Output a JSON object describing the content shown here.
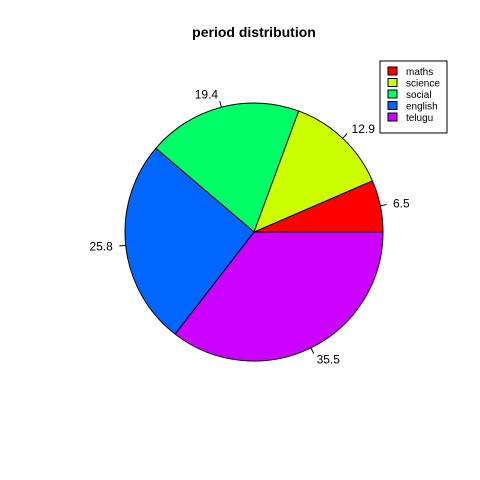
{
  "chart_data": {
    "type": "pie",
    "title": "period distribution",
    "categories": [
      "maths",
      "science",
      "social",
      "english",
      "telugu"
    ],
    "values": [
      6.5,
      12.9,
      19.4,
      25.8,
      35.5
    ],
    "labels": [
      "6.5",
      "12.9",
      "19.4",
      "25.8",
      "35.5"
    ],
    "colors": [
      "#FF0000",
      "#CCFF00",
      "#00FF66",
      "#0066FF",
      "#CC00FF"
    ],
    "start_angle_deg": 0,
    "direction": "counterclockwise",
    "legend": {
      "position": "top-right",
      "entries": [
        "maths",
        "science",
        "social",
        "english",
        "telugu"
      ]
    }
  }
}
